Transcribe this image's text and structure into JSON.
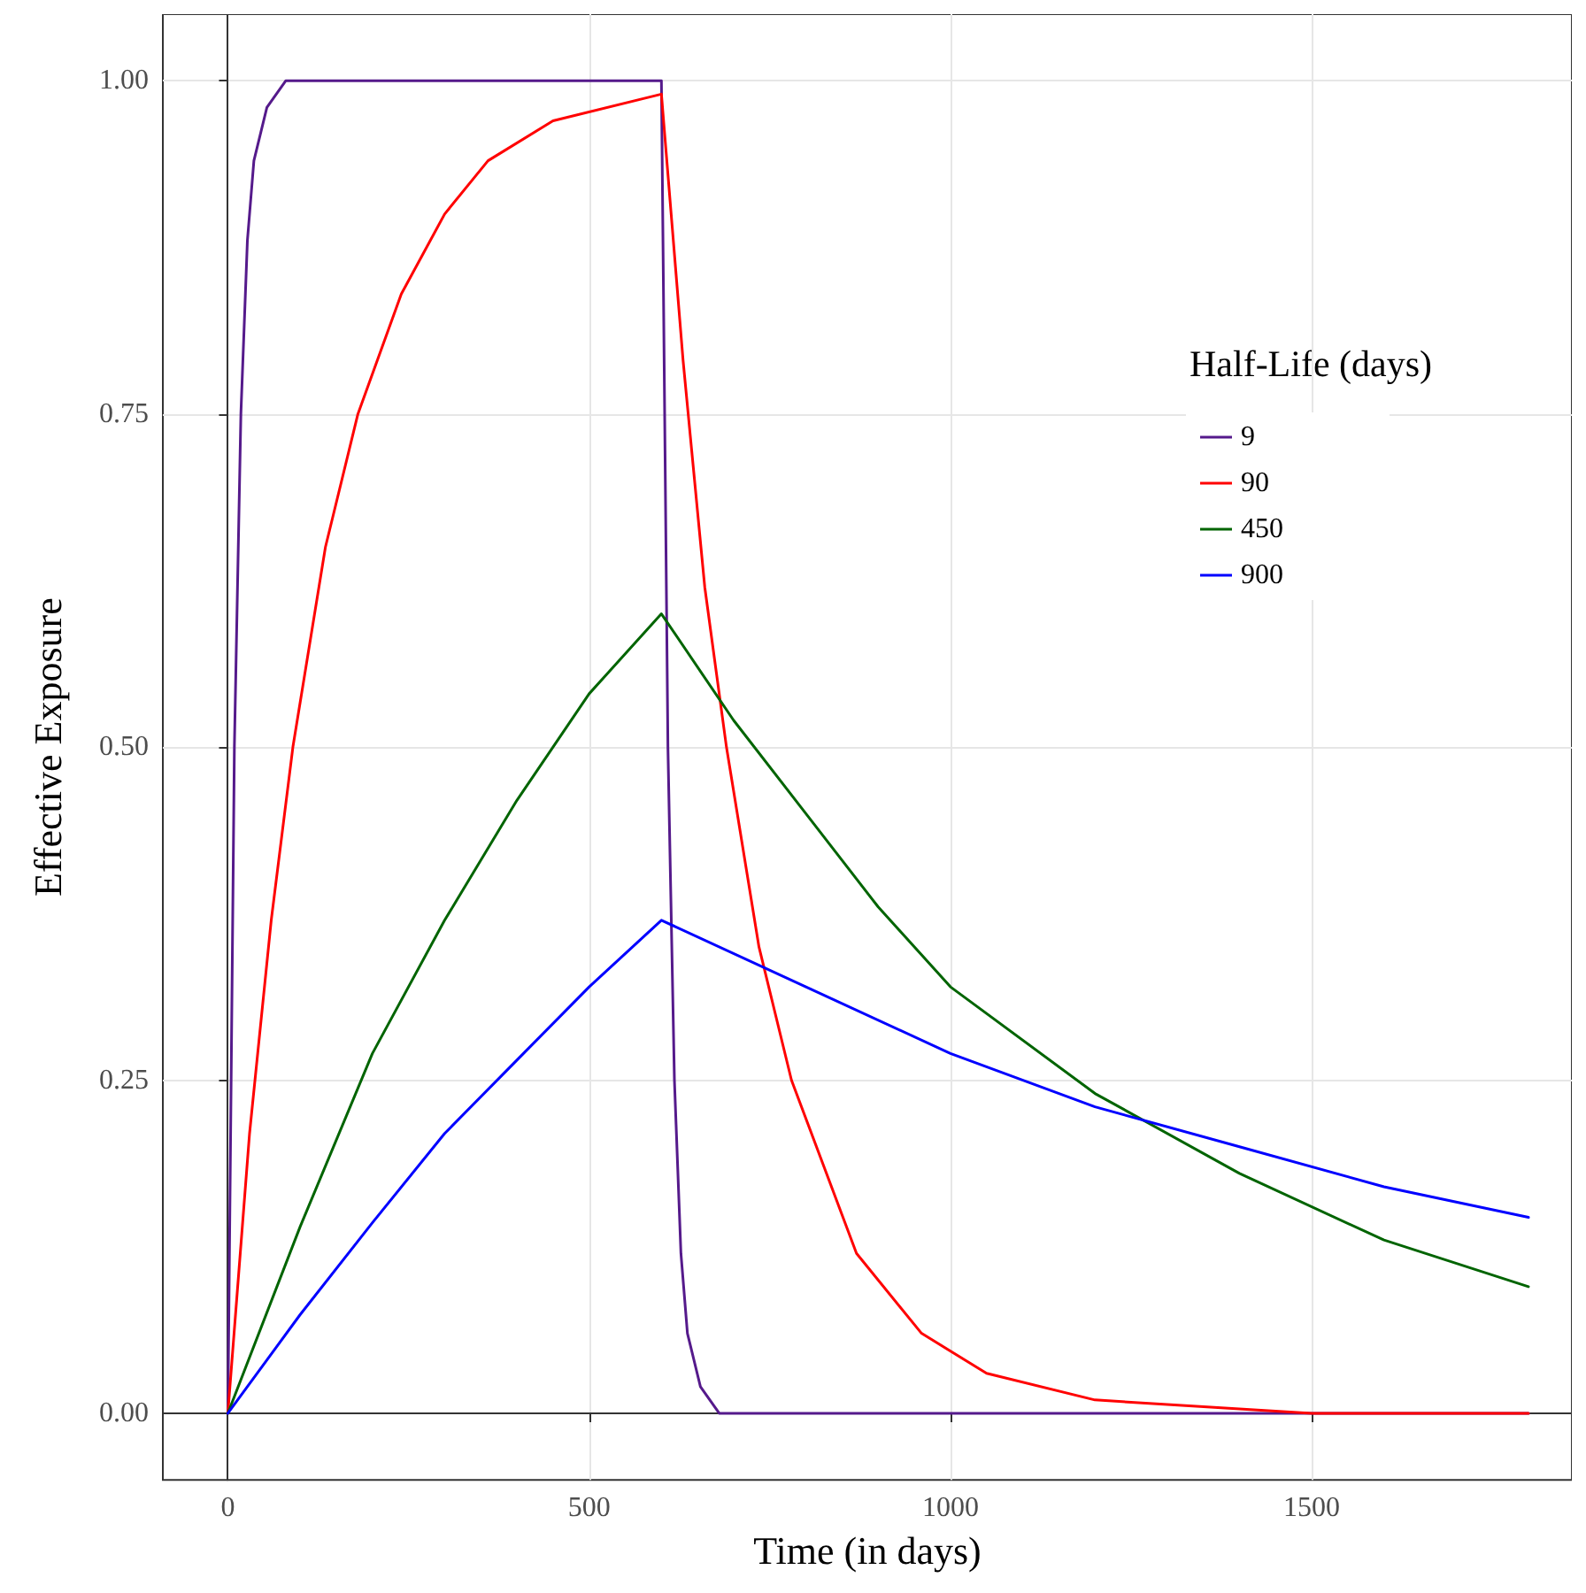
{
  "chart_data": {
    "type": "line",
    "xlabel": "Time (in days)",
    "ylabel": "Effective Exposure",
    "legend_title": "Half-Life (days)",
    "xlim": [
      -90,
      1860
    ],
    "xticks": [
      0,
      500,
      1000,
      1500
    ],
    "ylim": [
      -0.05,
      1.05
    ],
    "yticks": [
      {
        "value": 0,
        "label": "0.00"
      },
      {
        "value": 0.25,
        "label": "0.25"
      },
      {
        "value": 0.5,
        "label": "0.50"
      },
      {
        "value": 0.75,
        "label": "0.75"
      },
      {
        "value": 1,
        "label": "1.00"
      }
    ],
    "grid": true,
    "legend": "top right",
    "line_style": "solid",
    "marker": "none",
    "series": [
      {
        "name": "9",
        "color": "#551a8b",
        "x": [
          0,
          9,
          18,
          27,
          36,
          54,
          80,
          600,
          609,
          618,
          627,
          636,
          654,
          680,
          1800
        ],
        "values": [
          0,
          0.5,
          0.75,
          0.88,
          0.94,
          0.98,
          1.0,
          1.0,
          0.5,
          0.25,
          0.12,
          0.06,
          0.02,
          0.0,
          0.0
        ]
      },
      {
        "name": "90",
        "color": "#ff0000",
        "x": [
          0,
          30,
          60,
          90,
          135,
          180,
          240,
          300,
          360,
          450,
          600,
          630,
          660,
          690,
          735,
          780,
          870,
          960,
          1050,
          1200,
          1500,
          1800
        ],
        "values": [
          0,
          0.21,
          0.37,
          0.5,
          0.65,
          0.75,
          0.84,
          0.9,
          0.94,
          0.97,
          0.99,
          0.79,
          0.62,
          0.5,
          0.35,
          0.25,
          0.12,
          0.06,
          0.03,
          0.01,
          0.0,
          0.0
        ]
      },
      {
        "name": "450",
        "color": "#006400",
        "x": [
          0,
          100,
          200,
          300,
          400,
          500,
          600,
          700,
          800,
          900,
          1000,
          1200,
          1400,
          1600,
          1800
        ],
        "values": [
          0,
          0.14,
          0.27,
          0.37,
          0.46,
          0.54,
          0.6,
          0.52,
          0.45,
          0.38,
          0.32,
          0.24,
          0.18,
          0.13,
          0.095
        ]
      },
      {
        "name": "900",
        "color": "#0000ff",
        "x": [
          0,
          100,
          200,
          300,
          400,
          500,
          600,
          800,
          1000,
          1200,
          1400,
          1600,
          1800
        ],
        "values": [
          0,
          0.074,
          0.143,
          0.21,
          0.265,
          0.32,
          0.37,
          0.32,
          0.27,
          0.23,
          0.2,
          0.17,
          0.147
        ]
      }
    ]
  }
}
